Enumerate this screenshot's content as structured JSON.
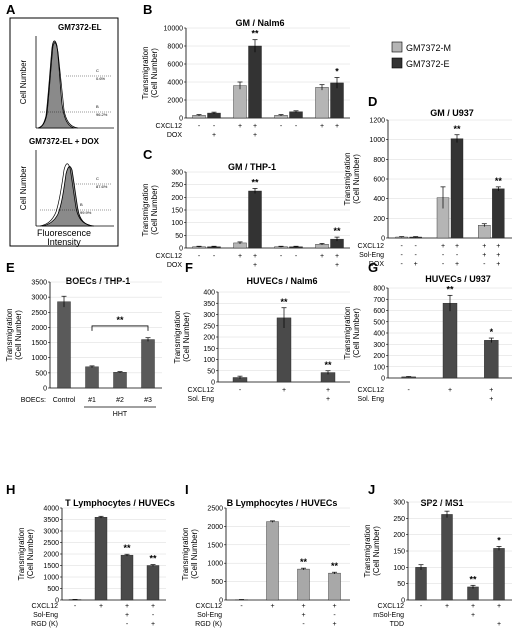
{
  "legend": [
    {
      "name": "GM7372-M",
      "color": "#b5b5b5"
    },
    {
      "name": "GM7372-E",
      "color": "#333333"
    }
  ],
  "panel_a": {
    "letter": "A",
    "top": {
      "title": "GM7372-EL",
      "ylabel": "Cell Number",
      "gate_c": "C",
      "gate_c_val": "0.6%",
      "gate_b": "B",
      "gate_b_val": "96.2%"
    },
    "bottom": {
      "title": "GM7372-EL + DOX",
      "ylabel": "Cell Number",
      "gate_c": "C",
      "gate_c_val": "87.6%",
      "gate_b": "B",
      "gate_b_val": "99.9%"
    },
    "xlabel_line1": "Fluorescence",
    "xlabel_line2": "Intensity"
  },
  "chart_data": [
    {
      "id": "B",
      "letter": "B",
      "type": "bar",
      "title": "GM / Nalm6",
      "ylabel1": "Transmigration",
      "ylabel2": "(Cell Number)",
      "ylim": [
        0,
        10000
      ],
      "yticks": [
        "0",
        "2000",
        "4000",
        "6000",
        "8000",
        "10000"
      ],
      "series": [
        {
          "name": "GM7372-M",
          "color": "#b5b5b5"
        },
        {
          "name": "GM7372-E",
          "color": "#333333"
        }
      ],
      "groups": [
        {
          "values": [
            300,
            550
          ],
          "errors": [
            80,
            100
          ]
        },
        {
          "values": [
            3600,
            8000
          ],
          "errors": [
            400,
            700
          ],
          "sig": [
            "",
            "**"
          ]
        },
        {
          "values": [
            300,
            700
          ],
          "errors": [
            80,
            100
          ]
        },
        {
          "values": [
            3400,
            3900
          ],
          "errors": [
            300,
            600
          ],
          "sig": [
            "",
            "*"
          ]
        }
      ],
      "rows": [
        {
          "label": "CXCL12",
          "vals": [
            "-",
            "-",
            "+",
            "+",
            "-",
            "-",
            "+",
            "+"
          ]
        },
        {
          "label": "DOX",
          "vals": [
            "",
            "+",
            "",
            "+",
            "",
            "",
            "",
            ""
          ]
        }
      ]
    },
    {
      "id": "C",
      "letter": "C",
      "type": "bar",
      "title": "GM / THP-1",
      "ylabel1": "Transmigration",
      "ylabel2": "(Cell Number)",
      "ylim": [
        0,
        300
      ],
      "yticks": [
        "0",
        "50",
        "100",
        "150",
        "200",
        "250",
        "300"
      ],
      "series": [
        {
          "name": "GM7372-M",
          "color": "#b5b5b5"
        },
        {
          "name": "GM7372-E",
          "color": "#333333"
        }
      ],
      "groups": [
        {
          "values": [
            5,
            5
          ],
          "errors": [
            2,
            2
          ]
        },
        {
          "values": [
            20,
            225
          ],
          "errors": [
            4,
            10
          ],
          "sig": [
            "",
            "**"
          ]
        },
        {
          "values": [
            5,
            5
          ],
          "errors": [
            2,
            2
          ]
        },
        {
          "values": [
            15,
            35
          ],
          "errors": [
            3,
            8
          ],
          "sig": [
            "",
            "**"
          ]
        }
      ],
      "rows": [
        {
          "label": "CXCL12",
          "vals": [
            "-",
            "-",
            "+",
            "+",
            "-",
            "-",
            "+",
            "+"
          ]
        },
        {
          "label": "DOX",
          "vals": [
            "",
            "",
            "",
            "+",
            "",
            "",
            "",
            "+"
          ]
        }
      ]
    },
    {
      "id": "D",
      "letter": "D",
      "type": "bar",
      "title": "GM / U937",
      "ylabel1": "Transmigration",
      "ylabel2": "(Cell Number)",
      "ylim": [
        0,
        1200
      ],
      "yticks": [
        "0",
        "200",
        "400",
        "600",
        "800",
        "1000",
        "1200"
      ],
      "series": [
        {
          "name": "GM7372-M",
          "color": "#b5b5b5"
        },
        {
          "name": "GM7372-E",
          "color": "#333333"
        }
      ],
      "groups": [
        {
          "values": [
            10,
            10
          ],
          "errors": [
            4,
            4
          ]
        },
        {
          "values": [
            410,
            1010
          ],
          "errors": [
            110,
            40
          ],
          "sig": [
            "",
            "**"
          ]
        },
        {
          "values": [
            130,
            500
          ],
          "errors": [
            15,
            20
          ],
          "sig": [
            "",
            "**"
          ]
        }
      ],
      "rows": [
        {
          "label": "CXCL12",
          "vals": [
            "-",
            "-",
            "+",
            "+",
            "+",
            "+"
          ]
        },
        {
          "label": "Sol-Eng",
          "vals": [
            "-",
            "-",
            "-",
            "-",
            "+",
            "+"
          ]
        },
        {
          "label": "DOX",
          "vals": [
            "-",
            "+",
            "-",
            "+",
            "-",
            "+"
          ]
        }
      ]
    },
    {
      "id": "E",
      "letter": "E",
      "type": "bar",
      "title": "BOECs / THP-1",
      "ylabel1": "Transmigration",
      "ylabel2": "(Cell Number)",
      "ylim": [
        0,
        3500
      ],
      "yticks": [
        "0",
        "500",
        "1000",
        "1500",
        "2000",
        "2500",
        "3000",
        "3500"
      ],
      "series": [
        {
          "name": "",
          "color": "#5a5a5a"
        }
      ],
      "groups": [
        {
          "values": [
            2850
          ],
          "errors": [
            180
          ]
        },
        {
          "values": [
            700
          ],
          "errors": [
            30
          ]
        },
        {
          "values": [
            520
          ],
          "errors": [
            20
          ]
        },
        {
          "values": [
            1600
          ],
          "errors": [
            60
          ]
        }
      ],
      "bracket": {
        "from": 1,
        "to": 3,
        "label": "**"
      },
      "xcats": [
        "Control",
        "#1",
        "#2",
        "#3"
      ],
      "rowprefix": "BOECs:",
      "sublabel": "HHT"
    },
    {
      "id": "F",
      "letter": "F",
      "type": "bar",
      "title": "HUVECs / Nalm6",
      "ylabel1": "Transmigration",
      "ylabel2": "(Cell Number)",
      "ylim": [
        0,
        400
      ],
      "yticks": [
        "0",
        "50",
        "100",
        "150",
        "200",
        "250",
        "300",
        "350",
        "400"
      ],
      "series": [
        {
          "name": "",
          "color": "#4a4a4a"
        }
      ],
      "groups": [
        {
          "values": [
            20
          ],
          "errors": [
            6
          ]
        },
        {
          "values": [
            285
          ],
          "errors": [
            45
          ],
          "sig": [
            "**"
          ]
        },
        {
          "values": [
            42
          ],
          "errors": [
            8
          ],
          "sig": [
            "**"
          ]
        }
      ],
      "rows": [
        {
          "label": "CXCL12",
          "vals": [
            "-",
            "+",
            "+"
          ]
        },
        {
          "label": "Sol. Eng",
          "vals": [
            "",
            "",
            "+"
          ]
        }
      ]
    },
    {
      "id": "G",
      "letter": "G",
      "type": "bar",
      "title": "HUVECs / U937",
      "ylabel1": "Transmigration",
      "ylabel2": "(Cell Number)",
      "ylim": [
        0,
        800
      ],
      "yticks": [
        "0",
        "100",
        "200",
        "300",
        "400",
        "500",
        "600",
        "700",
        "800"
      ],
      "series": [
        {
          "name": "",
          "color": "#4a4a4a"
        }
      ],
      "groups": [
        {
          "values": [
            10
          ],
          "errors": [
            3
          ]
        },
        {
          "values": [
            665
          ],
          "errors": [
            70
          ],
          "sig": [
            "**"
          ]
        },
        {
          "values": [
            335
          ],
          "errors": [
            20
          ],
          "sig": [
            "*"
          ]
        }
      ],
      "rows": [
        {
          "label": "CXCL12",
          "vals": [
            "-",
            "+",
            "+"
          ]
        },
        {
          "label": "Sol. Eng",
          "vals": [
            "",
            "",
            "+"
          ]
        }
      ]
    },
    {
      "id": "H",
      "letter": "H",
      "type": "bar",
      "title": "T Lymphocytes / HUVECs",
      "ylabel1": "Transmigration",
      "ylabel2": "(Cell Number)",
      "ylim": [
        0,
        4000
      ],
      "yticks": [
        "0",
        "500",
        "1000",
        "1500",
        "2000",
        "2500",
        "3000",
        "3500",
        "4000"
      ],
      "series": [
        {
          "name": "",
          "color": "#4a4a4a"
        }
      ],
      "groups": [
        {
          "values": [
            20
          ],
          "errors": [
            5
          ]
        },
        {
          "values": [
            3600
          ],
          "errors": [
            40
          ]
        },
        {
          "values": [
            1950
          ],
          "errors": [
            40
          ],
          "sig": [
            "**"
          ]
        },
        {
          "values": [
            1500
          ],
          "errors": [
            40
          ],
          "sig": [
            "**"
          ]
        }
      ],
      "rows": [
        {
          "label": "CXCL12",
          "vals": [
            "-",
            "+",
            "+",
            "+"
          ]
        },
        {
          "label": "Sol-Eng",
          "vals": [
            "",
            "",
            "+",
            "-"
          ]
        },
        {
          "label": "RGD (K)",
          "vals": [
            "",
            "",
            "-",
            "+"
          ]
        }
      ]
    },
    {
      "id": "I",
      "letter": "I",
      "type": "bar",
      "title": "B Lymphocytes / HUVECs",
      "ylabel1": "Transmigration",
      "ylabel2": "(Cell Number)",
      "ylim": [
        0,
        2500
      ],
      "yticks": [
        "0",
        "500",
        "1000",
        "1500",
        "2000",
        "2500"
      ],
      "series": [
        {
          "name": "",
          "color": "#a8a8a8"
        }
      ],
      "groups": [
        {
          "values": [
            10
          ],
          "errors": [
            3
          ]
        },
        {
          "values": [
            2130
          ],
          "errors": [
            20
          ]
        },
        {
          "values": [
            840
          ],
          "errors": [
            25
          ],
          "sig": [
            "**"
          ]
        },
        {
          "values": [
            730
          ],
          "errors": [
            25
          ],
          "sig": [
            "**"
          ]
        }
      ],
      "rows": [
        {
          "label": "CXCL12",
          "vals": [
            "-",
            "+",
            "+",
            "+"
          ]
        },
        {
          "label": "Sol-Eng",
          "vals": [
            "",
            "",
            "+",
            "-"
          ]
        },
        {
          "label": "RGD (K)",
          "vals": [
            "",
            "",
            "-",
            "+"
          ]
        }
      ]
    },
    {
      "id": "J",
      "letter": "J",
      "type": "bar",
      "title": "SP2  / MS1",
      "ylabel1": "Transmigration",
      "ylabel2": "(Cell Number)",
      "ylim": [
        0,
        300
      ],
      "yticks": [
        "0",
        "50",
        "100",
        "150",
        "200",
        "250",
        "300"
      ],
      "series": [
        {
          "name": "",
          "color": "#4a4a4a"
        }
      ],
      "groups": [
        {
          "values": [
            100
          ],
          "errors": [
            8
          ]
        },
        {
          "values": [
            262
          ],
          "errors": [
            10
          ]
        },
        {
          "values": [
            40
          ],
          "errors": [
            5
          ],
          "sig": [
            "**"
          ]
        },
        {
          "values": [
            158
          ],
          "errors": [
            6
          ],
          "sig": [
            "*"
          ]
        }
      ],
      "rows": [
        {
          "label": "CXCL12",
          "vals": [
            "-",
            "+",
            "+",
            "+"
          ]
        },
        {
          "label": "mSol-Eng",
          "vals": [
            "",
            "",
            "+",
            ""
          ]
        },
        {
          "label": "TDD",
          "vals": [
            "",
            "",
            "",
            "+"
          ]
        }
      ]
    }
  ]
}
